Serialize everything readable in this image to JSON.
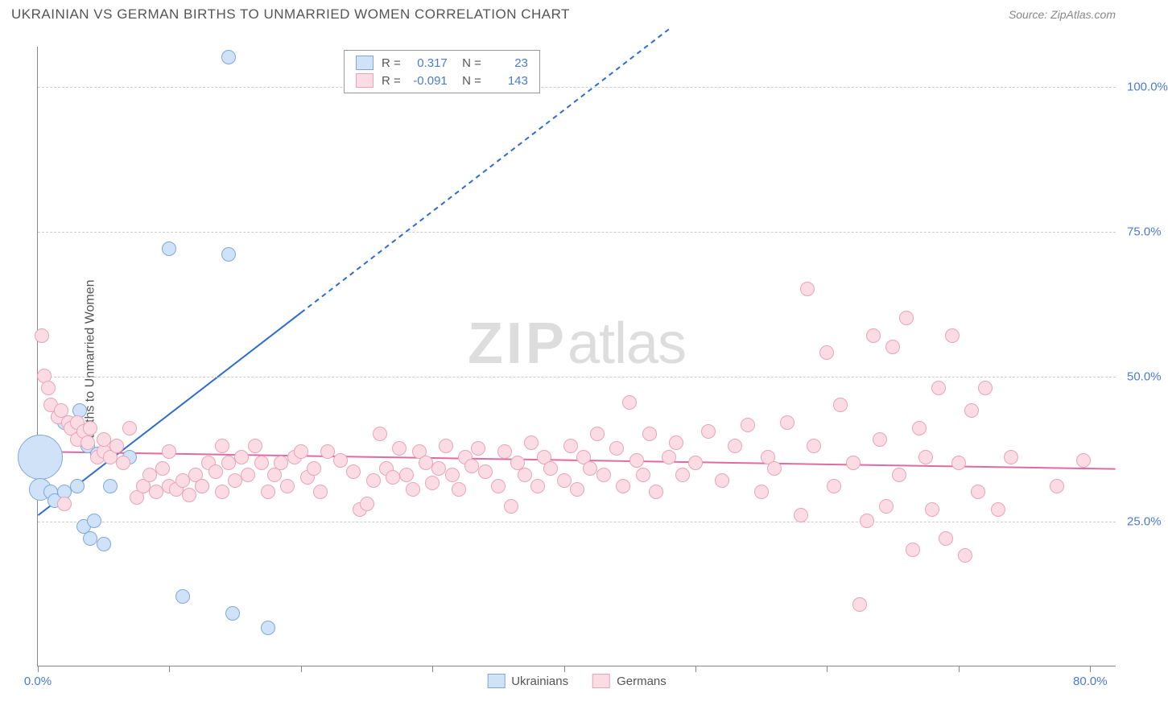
{
  "title": "UKRAINIAN VS GERMAN BIRTHS TO UNMARRIED WOMEN CORRELATION CHART",
  "source": "Source: ZipAtlas.com",
  "ylabel": "Births to Unmarried Women",
  "watermark_bold": "ZIP",
  "watermark_light": "atlas",
  "chart": {
    "type": "scatter",
    "xlim": [
      0,
      82
    ],
    "ylim": [
      0,
      107
    ],
    "x_ticks": [
      0,
      10,
      20,
      30,
      40,
      50,
      60,
      70,
      80
    ],
    "x_tick_labels": {
      "0": "0.0%",
      "80": "80.0%"
    },
    "y_ticks": [
      25,
      50,
      75,
      100
    ],
    "y_tick_labels": {
      "25": "25.0%",
      "50": "50.0%",
      "75": "75.0%",
      "100": "100.0%"
    },
    "background_color": "#ffffff",
    "grid_color": "#cccccc",
    "axis_color": "#888888",
    "series": [
      {
        "name": "Ukrainians",
        "fill": "#cfe2f7",
        "stroke": "#7fa8d9",
        "marker_radius": 9,
        "trend": {
          "solid_end_x": 20,
          "x1": 0,
          "y1": 26,
          "x2": 48,
          "y2": 110,
          "color": "#2d6cd1",
          "width": 2
        },
        "points": [
          [
            0.2,
            36,
            28
          ],
          [
            0.2,
            30.5,
            14
          ],
          [
            1,
            30
          ],
          [
            1.3,
            28.5
          ],
          [
            2,
            30
          ],
          [
            2,
            42
          ],
          [
            3,
            31
          ],
          [
            3.2,
            44
          ],
          [
            3.5,
            24
          ],
          [
            3.8,
            38
          ],
          [
            4,
            22
          ],
          [
            4.3,
            25
          ],
          [
            4.5,
            36.5
          ],
          [
            5,
            21
          ],
          [
            5.5,
            31
          ],
          [
            7,
            36
          ],
          [
            8,
            31
          ],
          [
            10,
            72
          ],
          [
            11,
            12
          ],
          [
            12.5,
            31
          ],
          [
            14.5,
            71
          ],
          [
            14.5,
            105
          ],
          [
            14.8,
            9
          ],
          [
            17.5,
            6.5
          ]
        ]
      },
      {
        "name": "Germans",
        "fill": "#fbdce5",
        "stroke": "#e9a4b9",
        "marker_radius": 9,
        "trend": {
          "x1": 0,
          "y1": 37,
          "x2": 82,
          "y2": 34,
          "color": "#e16aa0",
          "width": 2
        },
        "points": [
          [
            0.3,
            57
          ],
          [
            0.5,
            50
          ],
          [
            0.8,
            48
          ],
          [
            1,
            45
          ],
          [
            1.5,
            43
          ],
          [
            1.8,
            44
          ],
          [
            2,
            28
          ],
          [
            2.3,
            42
          ],
          [
            2.5,
            41
          ],
          [
            3,
            42
          ],
          [
            3,
            39
          ],
          [
            3.5,
            40.5
          ],
          [
            3.8,
            38.5
          ],
          [
            4,
            41
          ],
          [
            4.5,
            36
          ],
          [
            5,
            37
          ],
          [
            5,
            39
          ],
          [
            5.5,
            36
          ],
          [
            6,
            38
          ],
          [
            6.5,
            35
          ],
          [
            7,
            41
          ],
          [
            7.5,
            29
          ],
          [
            8,
            31
          ],
          [
            8.5,
            33
          ],
          [
            9,
            30
          ],
          [
            9.5,
            34
          ],
          [
            10,
            31
          ],
          [
            10,
            37
          ],
          [
            10.5,
            30.5
          ],
          [
            11,
            32
          ],
          [
            11.5,
            29.5
          ],
          [
            12,
            33
          ],
          [
            12.5,
            31
          ],
          [
            13,
            35
          ],
          [
            13.5,
            33.5
          ],
          [
            14,
            30
          ],
          [
            14,
            38
          ],
          [
            14.5,
            35
          ],
          [
            15,
            32
          ],
          [
            15.5,
            36
          ],
          [
            16,
            33
          ],
          [
            16.5,
            38
          ],
          [
            17,
            35
          ],
          [
            17.5,
            30
          ],
          [
            18,
            33
          ],
          [
            18.5,
            35
          ],
          [
            19,
            31
          ],
          [
            19.5,
            36
          ],
          [
            20,
            37
          ],
          [
            20.5,
            32.5
          ],
          [
            21,
            34
          ],
          [
            21.5,
            30
          ],
          [
            22,
            37
          ],
          [
            23,
            35.5
          ],
          [
            24,
            33.5
          ],
          [
            24.5,
            27
          ],
          [
            25,
            28
          ],
          [
            25.5,
            32
          ],
          [
            26,
            40
          ],
          [
            26.5,
            34
          ],
          [
            27,
            32.5
          ],
          [
            27.5,
            37.5
          ],
          [
            28,
            33
          ],
          [
            28.5,
            30.5
          ],
          [
            29,
            37
          ],
          [
            29.5,
            35
          ],
          [
            30,
            31.5
          ],
          [
            30.5,
            34
          ],
          [
            31,
            38
          ],
          [
            31.5,
            33
          ],
          [
            32,
            30.5
          ],
          [
            32.5,
            36
          ],
          [
            33,
            34.5
          ],
          [
            33.5,
            37.5
          ],
          [
            34,
            33.5
          ],
          [
            35,
            31
          ],
          [
            35.5,
            37
          ],
          [
            36,
            27.5
          ],
          [
            36.5,
            35
          ],
          [
            37,
            33
          ],
          [
            37.5,
            38.5
          ],
          [
            38,
            31
          ],
          [
            38.5,
            36
          ],
          [
            39,
            34
          ],
          [
            40,
            32
          ],
          [
            40.5,
            38
          ],
          [
            41,
            30.5
          ],
          [
            41.5,
            36
          ],
          [
            42,
            34
          ],
          [
            42.5,
            40
          ],
          [
            43,
            33
          ],
          [
            44,
            37.5
          ],
          [
            44.5,
            31
          ],
          [
            45,
            45.5
          ],
          [
            45.5,
            35.5
          ],
          [
            46,
            33
          ],
          [
            46.5,
            40
          ],
          [
            47,
            30
          ],
          [
            48,
            36
          ],
          [
            48.5,
            38.5
          ],
          [
            49,
            33
          ],
          [
            50,
            35
          ],
          [
            51,
            40.5
          ],
          [
            52,
            32
          ],
          [
            53,
            38
          ],
          [
            54,
            41.5
          ],
          [
            55,
            30
          ],
          [
            55.5,
            36
          ],
          [
            56,
            34
          ],
          [
            57,
            42
          ],
          [
            58,
            26
          ],
          [
            58.5,
            65
          ],
          [
            59,
            38
          ],
          [
            60,
            54
          ],
          [
            60.5,
            31
          ],
          [
            61,
            45
          ],
          [
            62,
            35
          ],
          [
            62.5,
            10.5
          ],
          [
            63,
            25
          ],
          [
            63.5,
            57
          ],
          [
            64,
            39
          ],
          [
            64.5,
            27.5
          ],
          [
            65,
            55
          ],
          [
            65.5,
            33
          ],
          [
            66,
            60
          ],
          [
            66.5,
            20
          ],
          [
            67,
            41
          ],
          [
            67.5,
            36
          ],
          [
            68,
            27
          ],
          [
            68.5,
            48
          ],
          [
            69,
            22
          ],
          [
            69.5,
            57
          ],
          [
            70,
            35
          ],
          [
            70.5,
            19
          ],
          [
            71,
            44
          ],
          [
            71.5,
            30
          ],
          [
            72,
            48
          ],
          [
            73,
            27
          ],
          [
            74,
            36
          ],
          [
            77.5,
            31
          ],
          [
            79.5,
            35.5
          ]
        ]
      }
    ]
  },
  "stats_legend": [
    {
      "series": "Ukrainians",
      "fill": "#cfe2f7",
      "stroke": "#7fa8d9",
      "R": "0.317",
      "N": "23"
    },
    {
      "series": "Germans",
      "fill": "#fbdce5",
      "stroke": "#e9a4b9",
      "R": "-0.091",
      "N": "143"
    }
  ],
  "bottom_legend": [
    {
      "label": "Ukrainians",
      "fill": "#cfe2f7",
      "stroke": "#7fa8d9"
    },
    {
      "label": "Germans",
      "fill": "#fbdce5",
      "stroke": "#e9a4b9"
    }
  ]
}
